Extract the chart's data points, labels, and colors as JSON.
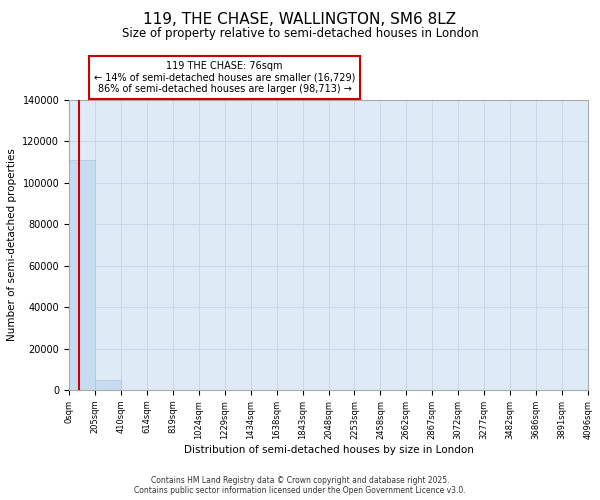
{
  "title": "119, THE CHASE, WALLINGTON, SM6 8LZ",
  "subtitle": "Size of property relative to semi-detached houses in London",
  "xlabel": "Distribution of semi-detached houses by size in London",
  "ylabel": "Number of semi-detached properties",
  "annotation_line1": "119 THE CHASE: 76sqm",
  "annotation_line2": "← 14% of semi-detached houses are smaller (16,729)",
  "annotation_line3": "86% of semi-detached houses are larger (98,713) →",
  "bar_color": "#c8dcf0",
  "bar_edge_color": "#aac4e0",
  "red_line_color": "#cc0000",
  "annotation_box_edge": "#cc0000",
  "grid_color": "#c8d8ea",
  "plot_bg_color": "#deeaf6",
  "fig_bg_color": "#ffffff",
  "footer_text": "Contains HM Land Registry data © Crown copyright and database right 2025.\nContains public sector information licensed under the Open Government Licence v3.0.",
  "ylim": [
    0,
    140000
  ],
  "yticks": [
    0,
    20000,
    40000,
    60000,
    80000,
    100000,
    120000,
    140000
  ],
  "xtick_labels": [
    "0sqm",
    "205sqm",
    "410sqm",
    "614sqm",
    "819sqm",
    "1024sqm",
    "1229sqm",
    "1434sqm",
    "1638sqm",
    "1843sqm",
    "2048sqm",
    "2253sqm",
    "2458sqm",
    "2662sqm",
    "2867sqm",
    "3072sqm",
    "3277sqm",
    "3482sqm",
    "3686sqm",
    "3891sqm",
    "4096sqm"
  ],
  "bar_heights": [
    111000,
    5000,
    0,
    0,
    0,
    0,
    0,
    0,
    0,
    0,
    0,
    0,
    0,
    0,
    0,
    0,
    0,
    0,
    0,
    0
  ],
  "red_line_x": 0.37,
  "num_bins": 20
}
